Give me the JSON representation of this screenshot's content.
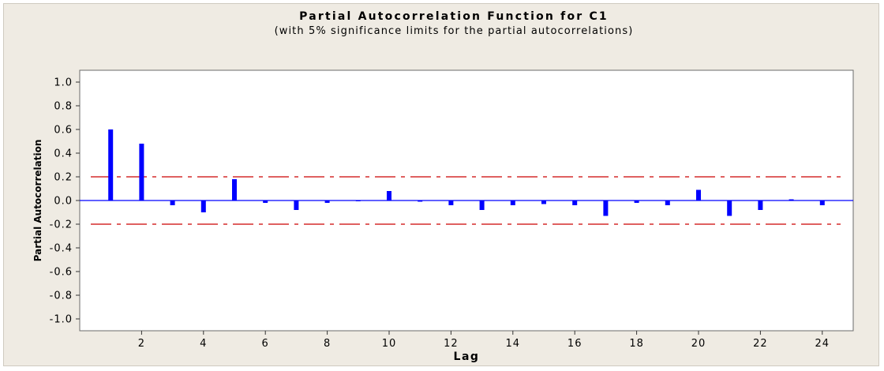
{
  "chart_data": {
    "type": "bar",
    "title": "Partial Autocorrelation Function for C1",
    "subtitle": "(with 5% significance limits for the partial autocorrelations)",
    "xlabel": "Lag",
    "ylabel": "Partial Autocorrelation",
    "x": [
      1,
      2,
      3,
      4,
      5,
      6,
      7,
      8,
      9,
      10,
      11,
      12,
      13,
      14,
      15,
      16,
      17,
      18,
      19,
      20,
      21,
      22,
      23,
      24
    ],
    "values": [
      0.6,
      0.48,
      -0.04,
      -0.1,
      0.18,
      -0.02,
      -0.08,
      -0.02,
      0.0,
      0.08,
      -0.01,
      -0.04,
      -0.08,
      -0.04,
      -0.03,
      -0.04,
      -0.13,
      -0.02,
      -0.04,
      0.09,
      -0.13,
      -0.08,
      0.01,
      -0.04
    ],
    "ylim": [
      -1.1,
      1.1
    ],
    "xlim": [
      0,
      25
    ],
    "yticks": [
      "1.0",
      "0.8",
      "0.6",
      "0.4",
      "0.2",
      "0.0",
      "-0.2",
      "-0.4",
      "-0.6",
      "-0.8",
      "-1.0"
    ],
    "ytick_values": [
      1.0,
      0.8,
      0.6,
      0.4,
      0.2,
      0.0,
      -0.2,
      -0.4,
      -0.6,
      -0.8,
      -1.0
    ],
    "xticks": [
      "2",
      "4",
      "6",
      "8",
      "10",
      "12",
      "14",
      "16",
      "18",
      "20",
      "22",
      "24"
    ],
    "xtick_values": [
      2,
      4,
      6,
      8,
      10,
      12,
      14,
      16,
      18,
      20,
      22,
      24
    ],
    "significance_limits": [
      0.2,
      -0.2
    ],
    "colors": {
      "bars": "#0000ff",
      "limits": "#cc0000",
      "zero_line": "#0000ff",
      "background": "#efebe3",
      "plot_area": "#ffffff"
    }
  }
}
